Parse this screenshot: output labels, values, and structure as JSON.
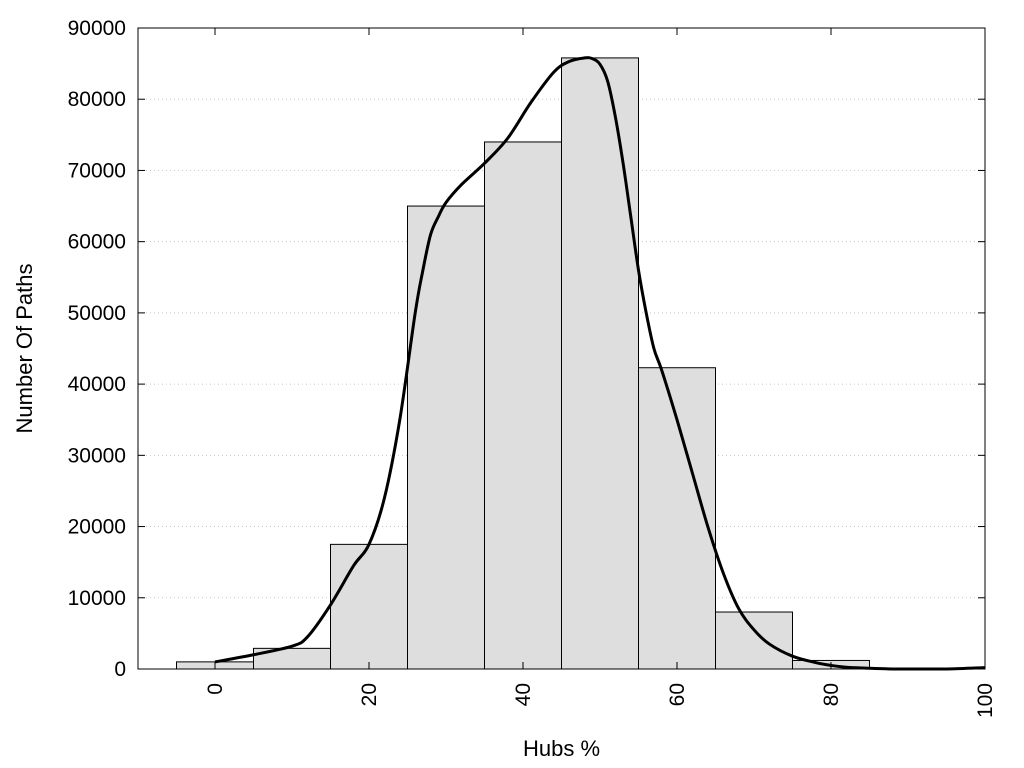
{
  "chart_data": {
    "type": "bar",
    "title": "",
    "xlabel": "Hubs %",
    "ylabel": "Number Of Paths",
    "xlim": [
      -10,
      100
    ],
    "ylim": [
      0,
      90000
    ],
    "xticks": [
      "0",
      "20",
      "40",
      "60",
      "80",
      "100"
    ],
    "yticks": [
      "0",
      "10000",
      "20000",
      "30000",
      "40000",
      "50000",
      "60000",
      "70000",
      "80000",
      "90000"
    ],
    "grid": "horizontal-dotted",
    "bars": [
      {
        "x_start": -5,
        "x_end": 5,
        "value": 1000
      },
      {
        "x_start": 5,
        "x_end": 15,
        "value": 2900
      },
      {
        "x_start": 15,
        "x_end": 25,
        "value": 17500
      },
      {
        "x_start": 25,
        "x_end": 35,
        "value": 65000
      },
      {
        "x_start": 35,
        "x_end": 45,
        "value": 74000
      },
      {
        "x_start": 45,
        "x_end": 55,
        "value": 85800
      },
      {
        "x_start": 55,
        "x_end": 65,
        "value": 42300
      },
      {
        "x_start": 65,
        "x_end": 75,
        "value": 8000
      },
      {
        "x_start": 75,
        "x_end": 85,
        "value": 1200
      },
      {
        "x_start": 85,
        "x_end": 95,
        "value": 100
      }
    ],
    "density_curve": {
      "x": [
        0,
        5,
        10,
        12,
        15,
        18,
        20,
        22,
        24,
        26,
        27,
        28,
        29,
        30,
        32,
        35,
        38,
        41,
        44,
        46,
        48,
        49,
        50,
        51,
        52,
        53,
        54,
        55,
        56,
        57,
        58,
        60,
        62,
        64,
        66,
        68,
        70,
        72,
        75,
        78,
        80,
        82,
        85,
        88,
        90,
        95,
        100
      ],
      "y": [
        1000,
        2000,
        3200,
        4500,
        9000,
        14500,
        17500,
        24000,
        35000,
        50000,
        56000,
        61000,
        63500,
        65500,
        68000,
        71000,
        74500,
        79500,
        83800,
        85300,
        85800,
        85700,
        84900,
        82500,
        77500,
        71000,
        63500,
        56000,
        50000,
        45000,
        42000,
        35000,
        27500,
        20000,
        13500,
        8500,
        5500,
        3500,
        1800,
        900,
        500,
        250,
        100,
        0,
        0,
        0,
        200
      ]
    },
    "colors": {
      "bar_fill": "#dedede",
      "bar_stroke": "#000000",
      "curve": "#000000",
      "grid": "#c8c8c8"
    }
  }
}
